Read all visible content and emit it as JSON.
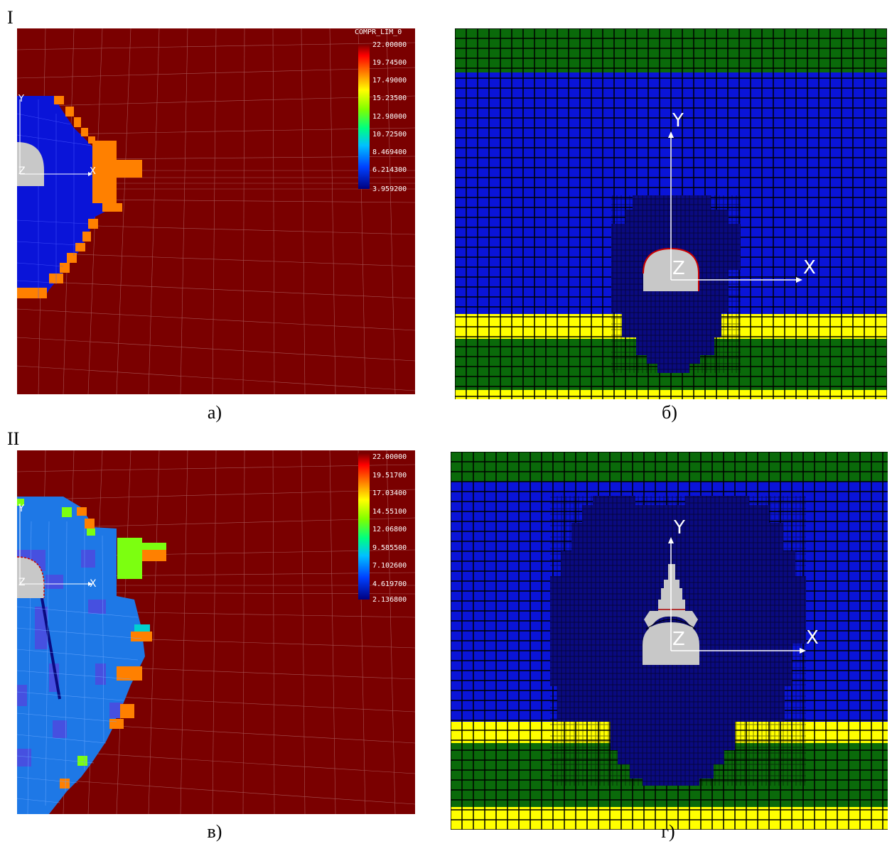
{
  "rows": {
    "top_label": "I",
    "bottom_label": "II"
  },
  "captions": {
    "a": "а)",
    "b": "б)",
    "v": "в)",
    "g": "г)"
  },
  "panel_a": {
    "legend_title": "COMPR_LIM_0",
    "legend_values": [
      "22.00000",
      "19.74500",
      "17.49000",
      "15.23500",
      "12.98000",
      "10.72500",
      "8.469400",
      "6.214300",
      "3.959200"
    ],
    "axis_x": "X",
    "axis_y": "Y",
    "axis_z": "Z"
  },
  "panel_b": {
    "axis_x": "X",
    "axis_y": "Y",
    "axis_z": "Z"
  },
  "panel_v": {
    "legend_values": [
      "22.00000",
      "19.51700",
      "17.03400",
      "14.55100",
      "12.06800",
      "9.585500",
      "7.102600",
      "4.619700",
      "2.136800"
    ],
    "axis_x": "X",
    "axis_y": "Y",
    "axis_z": "Z"
  },
  "panel_g": {
    "axis_x": "X",
    "axis_y": "Y",
    "axis_z": "Z"
  },
  "colors": {
    "background_red": "#7a0000",
    "blue": "#0a14d8",
    "dark_blue": "#0a0a80",
    "green": "#0a6a0a",
    "yellow": "#ffff00",
    "orange": "#ff8000",
    "light_blue": "#1e78e6",
    "lime": "#7cff10",
    "gray": "#c8c8c8"
  }
}
